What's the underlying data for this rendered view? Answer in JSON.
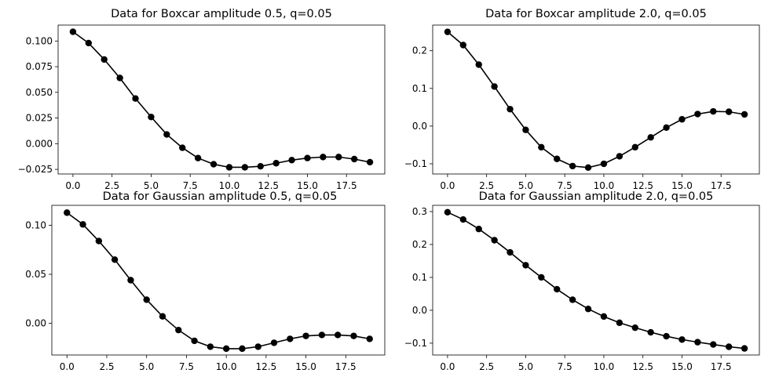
{
  "chart_data": [
    {
      "type": "line",
      "title": "Data for Boxcar amplitude 0.5, q=0.05",
      "xlabel": "",
      "ylabel": "",
      "xlim": [
        -0.95,
        19.95
      ],
      "ylim": [
        -0.0295,
        0.1155
      ],
      "xticks": [
        0,
        2.5,
        5,
        7.5,
        10,
        12.5,
        15,
        17.5
      ],
      "xtick_labels": [
        "0.0",
        "2.5",
        "5.0",
        "7.5",
        "10.0",
        "12.5",
        "15.0",
        "17.5"
      ],
      "yticks": [
        -0.025,
        0,
        0.025,
        0.05,
        0.075,
        0.1
      ],
      "ytick_labels": [
        "−0.025",
        "0.000",
        "0.025",
        "0.050",
        "0.075",
        "0.100"
      ],
      "grid": false,
      "color": "#000000",
      "x": [
        0,
        1,
        2,
        3,
        4,
        5,
        6,
        7,
        8,
        9,
        10,
        11,
        12,
        13,
        14,
        15,
        16,
        17,
        18,
        19
      ],
      "y": [
        0.109,
        0.098,
        0.082,
        0.064,
        0.044,
        0.026,
        0.009,
        -0.004,
        -0.014,
        -0.02,
        -0.023,
        -0.023,
        -0.022,
        -0.019,
        -0.016,
        -0.014,
        -0.013,
        -0.013,
        -0.015,
        -0.018
      ]
    },
    {
      "type": "line",
      "title": "Data for Boxcar amplitude 2.0, q=0.05",
      "xlabel": "",
      "ylabel": "",
      "xlim": [
        -0.95,
        19.95
      ],
      "ylim": [
        -0.127,
        0.268
      ],
      "xticks": [
        0,
        2.5,
        5,
        7.5,
        10,
        12.5,
        15,
        17.5
      ],
      "xtick_labels": [
        "0.0",
        "2.5",
        "5.0",
        "7.5",
        "10.0",
        "12.5",
        "15.0",
        "17.5"
      ],
      "yticks": [
        -0.1,
        0,
        0.1,
        0.2
      ],
      "ytick_labels": [
        "−0.1",
        "0.0",
        "0.1",
        "0.2"
      ],
      "grid": false,
      "color": "#000000",
      "x": [
        0,
        1,
        2,
        3,
        4,
        5,
        6,
        7,
        8,
        9,
        10,
        11,
        12,
        13,
        14,
        15,
        16,
        17,
        18,
        19
      ],
      "y": [
        0.25,
        0.215,
        0.163,
        0.105,
        0.045,
        -0.01,
        -0.056,
        -0.087,
        -0.106,
        -0.11,
        -0.1,
        -0.08,
        -0.056,
        -0.03,
        -0.004,
        0.018,
        0.032,
        0.039,
        0.038,
        0.031
      ]
    },
    {
      "type": "line",
      "title": "Data for Gaussian amplitude 0.5, q=0.05",
      "xlabel": "",
      "ylabel": "",
      "xlim": [
        -0.95,
        19.95
      ],
      "ylim": [
        -0.0325,
        0.1205
      ],
      "xticks": [
        0,
        2.5,
        5,
        7.5,
        10,
        12.5,
        15,
        17.5
      ],
      "xtick_labels": [
        "0.0",
        "2.5",
        "5.0",
        "7.5",
        "10.0",
        "12.5",
        "15.0",
        "17.5"
      ],
      "yticks": [
        0,
        0.05,
        0.1
      ],
      "ytick_labels": [
        "0.00",
        "0.05",
        "0.10"
      ],
      "grid": false,
      "color": "#000000",
      "x": [
        0,
        1,
        2,
        3,
        4,
        5,
        6,
        7,
        8,
        9,
        10,
        11,
        12,
        13,
        14,
        15,
        16,
        17,
        18,
        19
      ],
      "y": [
        0.113,
        0.101,
        0.084,
        0.065,
        0.044,
        0.024,
        0.007,
        -0.007,
        -0.018,
        -0.024,
        -0.026,
        -0.026,
        -0.024,
        -0.02,
        -0.016,
        -0.013,
        -0.012,
        -0.012,
        -0.013,
        -0.016
      ]
    },
    {
      "type": "line",
      "title": "Data for Gaussian amplitude 2.0, q=0.05",
      "xlabel": "",
      "ylabel": "",
      "xlim": [
        -0.95,
        19.95
      ],
      "ylim": [
        -0.136,
        0.319
      ],
      "xticks": [
        0,
        2.5,
        5,
        7.5,
        10,
        12.5,
        15,
        17.5
      ],
      "xtick_labels": [
        "0.0",
        "2.5",
        "5.0",
        "7.5",
        "10.0",
        "12.5",
        "15.0",
        "17.5"
      ],
      "yticks": [
        -0.1,
        0,
        0.1,
        0.2,
        0.3
      ],
      "ytick_labels": [
        "−0.1",
        "0.0",
        "0.1",
        "0.2",
        "0.3"
      ],
      "grid": false,
      "color": "#000000",
      "x": [
        0,
        1,
        2,
        3,
        4,
        5,
        6,
        7,
        8,
        9,
        10,
        11,
        12,
        13,
        14,
        15,
        16,
        17,
        18,
        19
      ],
      "y": [
        0.298,
        0.276,
        0.247,
        0.213,
        0.176,
        0.137,
        0.1,
        0.064,
        0.032,
        0.004,
        -0.019,
        -0.038,
        -0.053,
        -0.067,
        -0.079,
        -0.089,
        -0.097,
        -0.104,
        -0.111,
        -0.116
      ]
    }
  ]
}
